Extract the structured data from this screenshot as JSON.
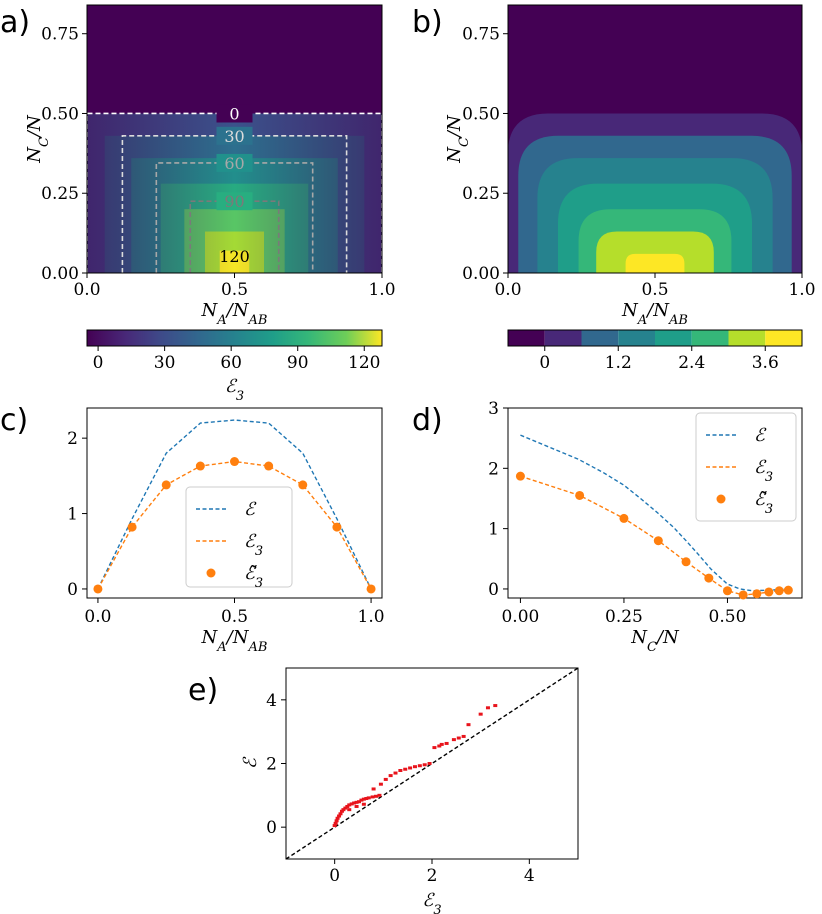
{
  "panels": {
    "a": "a)",
    "b": "b)",
    "c": "c)",
    "d": "d)",
    "e": "e)"
  },
  "colors": {
    "blue": "#1f77b4",
    "orange": "#ff7f0e",
    "red": "#e8141c",
    "black": "#000000"
  },
  "chart_data": [
    {
      "id": "a",
      "type": "heatmap",
      "title": "",
      "xlabel": "N_A/N_AB",
      "ylabel": "N_C/N",
      "xlim": [
        0,
        1
      ],
      "ylim": [
        0,
        0.84
      ],
      "xticks": [
        "0.0",
        "0.5",
        "1.0"
      ],
      "xtick_values": [
        0,
        0.5,
        1
      ],
      "yticks": [
        "0.00",
        "0.25",
        "0.50",
        "0.75"
      ],
      "ytick_values": [
        0,
        0.25,
        0.5,
        0.75
      ],
      "contours": [
        {
          "label": "0",
          "level": 0,
          "x0": 0.0,
          "x1": 1.0,
          "ytop": 0.5,
          "color": "#ffffff"
        },
        {
          "label": "30",
          "level": 30,
          "x0": 0.12,
          "x1": 0.88,
          "ytop": 0.43,
          "color": "#dcdcdc"
        },
        {
          "label": "60",
          "level": 60,
          "x0": 0.235,
          "x1": 0.765,
          "ytop": 0.345,
          "color": "#a8a8a8"
        },
        {
          "label": "90",
          "level": 90,
          "x0": 0.35,
          "x1": 0.65,
          "ytop": 0.225,
          "color": "#7a7a7a"
        },
        {
          "label": "120",
          "level": 120,
          "x0": 0.5,
          "x1": 0.5,
          "ytop": 0.07,
          "color": "#000000"
        }
      ],
      "colorbar": {
        "label": "E_3",
        "min": -5,
        "max": 128,
        "ticks": [
          "0",
          "30",
          "60",
          "90",
          "120"
        ],
        "tick_values": [
          0,
          30,
          60,
          90,
          120
        ]
      }
    },
    {
      "id": "b",
      "type": "heatmap",
      "xlabel": "N_A/N_AB",
      "ylabel": "N_C/N",
      "xlim": [
        0,
        1
      ],
      "ylim": [
        0,
        0.84
      ],
      "xticks": [
        "0.0",
        "0.5",
        "1.0"
      ],
      "xtick_values": [
        0,
        0.5,
        1
      ],
      "yticks": [
        "0.00",
        "0.25",
        "0.50",
        "0.75"
      ],
      "ytick_values": [
        0,
        0.25,
        0.5,
        0.75
      ],
      "bands": [
        {
          "level": -0.6,
          "ytop": 0.84,
          "halfw": 0.5
        },
        {
          "level": 0.0,
          "ytop": 0.5,
          "halfw": 0.5
        },
        {
          "level": 0.6,
          "ytop": 0.43,
          "halfw": 0.465
        },
        {
          "level": 1.2,
          "ytop": 0.36,
          "halfw": 0.4
        },
        {
          "level": 1.8,
          "ytop": 0.28,
          "halfw": 0.33
        },
        {
          "level": 2.4,
          "ytop": 0.2,
          "halfw": 0.26
        },
        {
          "level": 3.0,
          "ytop": 0.13,
          "halfw": 0.2
        },
        {
          "level": 3.6,
          "ytop": 0.06,
          "halfw": 0.1
        }
      ],
      "colorbar": {
        "label": "",
        "levels": [
          -0.6,
          0,
          0.6,
          1.2,
          1.8,
          2.4,
          3.0,
          3.6,
          4.2
        ],
        "ticks": [
          "0",
          "1.2",
          "2.4",
          "3.6"
        ],
        "tick_values": [
          0,
          1.2,
          2.4,
          3.6
        ]
      }
    },
    {
      "id": "c",
      "type": "line",
      "xlabel": "N_A/N_AB",
      "ylabel": "",
      "xlim": [
        -0.04,
        1.04
      ],
      "ylim": [
        -0.12,
        2.4
      ],
      "xticks": [
        "0.0",
        "0.5",
        "1.0"
      ],
      "xtick_values": [
        0,
        0.5,
        1
      ],
      "yticks": [
        "0",
        "1",
        "2"
      ],
      "ytick_values": [
        0,
        1,
        2
      ],
      "x": [
        0,
        0.125,
        0.25,
        0.375,
        0.5,
        0.625,
        0.75,
        0.875,
        1.0
      ],
      "series": [
        {
          "name": "E",
          "style": "dashed",
          "color": "#1f77b4",
          "values": [
            0,
            0.93,
            1.8,
            2.2,
            2.24,
            2.2,
            1.8,
            0.93,
            0
          ]
        },
        {
          "name": "E_3",
          "style": "dashed",
          "color": "#ff7f0e",
          "values": [
            0,
            0.82,
            1.38,
            1.63,
            1.69,
            1.63,
            1.38,
            0.82,
            0
          ]
        },
        {
          "name": "E~_3",
          "style": "dots",
          "color": "#ff7f0e",
          "values": [
            0,
            0.82,
            1.38,
            1.63,
            1.69,
            1.63,
            1.38,
            0.82,
            0
          ]
        }
      ],
      "legend": {
        "placement": "center-right",
        "entries": [
          "E",
          "E_3",
          "E~_3"
        ]
      }
    },
    {
      "id": "d",
      "type": "line",
      "xlabel": "N_C/N",
      "ylabel": "",
      "xlim": [
        -0.03,
        0.68
      ],
      "ylim": [
        -0.15,
        3.0
      ],
      "xticks": [
        "0.00",
        "0.25",
        "0.50"
      ],
      "xtick_values": [
        0,
        0.25,
        0.5
      ],
      "yticks": [
        "0",
        "1",
        "2",
        "3"
      ],
      "ytick_values": [
        0,
        1,
        2,
        3
      ],
      "series": [
        {
          "name": "E",
          "style": "dashed",
          "color": "#1f77b4",
          "x": [
            0,
            0.07,
            0.14,
            0.2,
            0.25,
            0.29,
            0.33,
            0.37,
            0.4,
            0.43,
            0.46,
            0.5,
            0.53,
            0.56,
            0.6,
            0.65
          ],
          "values": [
            2.55,
            2.35,
            2.15,
            1.93,
            1.72,
            1.5,
            1.27,
            1.02,
            0.8,
            0.57,
            0.33,
            0.08,
            0.0,
            -0.03,
            -0.02,
            0.0
          ]
        },
        {
          "name": "E_3",
          "style": "dashed",
          "color": "#ff7f0e",
          "x": [
            0,
            0.143,
            0.25,
            0.333,
            0.4,
            0.455,
            0.5,
            0.538,
            0.571,
            0.6,
            0.625,
            0.647
          ],
          "values": [
            1.87,
            1.55,
            1.17,
            0.8,
            0.45,
            0.18,
            -0.03,
            -0.1,
            -0.08,
            -0.05,
            -0.03,
            -0.02
          ]
        },
        {
          "name": "E~_3",
          "style": "dots",
          "color": "#ff7f0e",
          "x": [
            0,
            0.143,
            0.25,
            0.333,
            0.4,
            0.455,
            0.5,
            0.538,
            0.571,
            0.6,
            0.625,
            0.647
          ],
          "values": [
            1.87,
            1.55,
            1.17,
            0.8,
            0.45,
            0.18,
            -0.03,
            -0.1,
            -0.08,
            -0.05,
            -0.03,
            -0.02
          ]
        }
      ],
      "legend": {
        "placement": "top-right",
        "entries": [
          "E",
          "E_3",
          "E~_3"
        ]
      }
    },
    {
      "id": "e",
      "type": "scatter",
      "xlabel": "E_3",
      "ylabel": "E",
      "xlim": [
        -1,
        5
      ],
      "ylim": [
        -1,
        5
      ],
      "xticks": [
        "0",
        "2",
        "4"
      ],
      "xtick_values": [
        0,
        2,
        4
      ],
      "yticks": [
        "0",
        "2",
        "4"
      ],
      "ytick_values": [
        0,
        2,
        4
      ],
      "reference_line": {
        "style": "dashed",
        "color": "#000000",
        "from": [
          -1,
          -1
        ],
        "to": [
          5,
          5
        ]
      },
      "points": [
        [
          0,
          0.05
        ],
        [
          0.02,
          0.12
        ],
        [
          0.04,
          0.2
        ],
        [
          0.06,
          0.28
        ],
        [
          0.09,
          0.35
        ],
        [
          0.12,
          0.42
        ],
        [
          0.15,
          0.5
        ],
        [
          0.18,
          0.55
        ],
        [
          0.22,
          0.6
        ],
        [
          0.26,
          0.65
        ],
        [
          0.3,
          0.7
        ],
        [
          0.35,
          0.73
        ],
        [
          0.4,
          0.76
        ],
        [
          0.45,
          0.78
        ],
        [
          0.5,
          0.8
        ],
        [
          0.55,
          0.85
        ],
        [
          0.6,
          0.88
        ],
        [
          0.65,
          0.9
        ],
        [
          0.7,
          0.92
        ],
        [
          0.78,
          0.95
        ],
        [
          0.85,
          0.97
        ],
        [
          0.92,
          1.0
        ],
        [
          0.3,
          0.55
        ],
        [
          0.45,
          0.65
        ],
        [
          0.6,
          0.72
        ],
        [
          0.95,
          1.35
        ],
        [
          1.05,
          1.5
        ],
        [
          1.15,
          1.62
        ],
        [
          1.25,
          1.7
        ],
        [
          1.35,
          1.78
        ],
        [
          1.45,
          1.82
        ],
        [
          1.55,
          1.86
        ],
        [
          1.65,
          1.9
        ],
        [
          1.75,
          1.93
        ],
        [
          1.85,
          1.96
        ],
        [
          1.95,
          2.0
        ],
        [
          0.8,
          1.2
        ],
        [
          2.05,
          2.5
        ],
        [
          2.15,
          2.55
        ],
        [
          2.2,
          2.6
        ],
        [
          2.3,
          2.63
        ],
        [
          2.45,
          2.75
        ],
        [
          2.55,
          2.8
        ],
        [
          2.65,
          2.85
        ],
        [
          2.75,
          3.22
        ],
        [
          3.0,
          3.55
        ],
        [
          3.15,
          3.75
        ],
        [
          3.3,
          3.82
        ]
      ]
    }
  ]
}
